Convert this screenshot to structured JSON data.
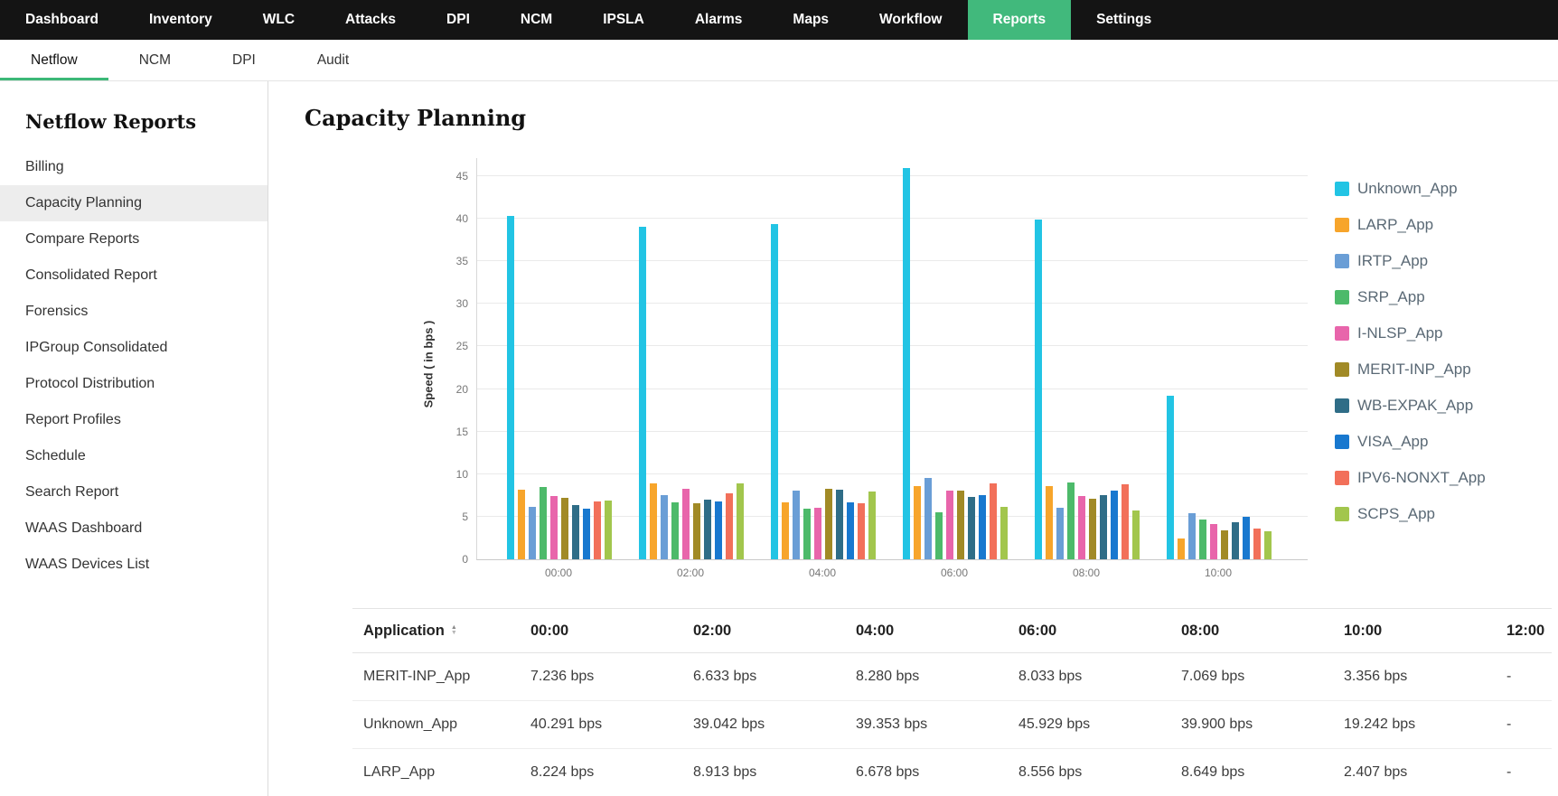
{
  "nav": {
    "items": [
      "Dashboard",
      "Inventory",
      "WLC",
      "Attacks",
      "DPI",
      "NCM",
      "IPSLA",
      "Alarms",
      "Maps",
      "Workflow",
      "Reports",
      "Settings"
    ],
    "active": "Reports",
    "active_color": "#41b97c"
  },
  "subnav": {
    "items": [
      "Netflow",
      "NCM",
      "DPI",
      "Audit"
    ],
    "active": "Netflow",
    "accent_color": "#3cb878"
  },
  "sidebar": {
    "title": "Netflow Reports",
    "items": [
      "Billing",
      "Capacity Planning",
      "Compare Reports",
      "Consolidated Report",
      "Forensics",
      "IPGroup Consolidated",
      "Protocol Distribution",
      "Report Profiles",
      "Schedule",
      "Search Report",
      "WAAS Dashboard",
      "WAAS Devices List"
    ],
    "active": "Capacity Planning"
  },
  "page": {
    "title": "Capacity Planning"
  },
  "chart_data": {
    "type": "bar",
    "title": "Capacity Planning",
    "xlabel": "",
    "ylabel": "Speed ( in bps )",
    "ylim": [
      0,
      45
    ],
    "yticks": [
      0,
      5,
      10,
      15,
      20,
      25,
      30,
      35,
      40,
      45
    ],
    "grid": true,
    "legend_position": "right",
    "categories": [
      "00:00",
      "02:00",
      "04:00",
      "06:00",
      "08:00",
      "10:00"
    ],
    "series": [
      {
        "name": "Unknown_App",
        "color": "#22c4e4",
        "values": [
          40.291,
          39.042,
          39.353,
          45.929,
          39.9,
          19.242
        ]
      },
      {
        "name": "LARP_App",
        "color": "#f7a52b",
        "values": [
          8.224,
          8.913,
          6.678,
          8.556,
          8.649,
          2.407
        ]
      },
      {
        "name": "IRTP_App",
        "color": "#6a9ed6",
        "values": [
          6.2,
          7.5,
          8.1,
          9.6,
          6.0,
          5.4
        ]
      },
      {
        "name": "SRP_App",
        "color": "#4dba6a",
        "values": [
          8.5,
          6.7,
          5.9,
          5.5,
          9.0,
          4.7
        ]
      },
      {
        "name": "I-NLSP_App",
        "color": "#e865ab",
        "values": [
          7.4,
          8.3,
          6.0,
          8.1,
          7.4,
          4.1
        ]
      },
      {
        "name": "MERIT-INP_App",
        "color": "#a18a26",
        "values": [
          7.236,
          6.633,
          8.28,
          8.033,
          7.069,
          3.356
        ]
      },
      {
        "name": "WB-EXPAK_App",
        "color": "#2f6d87",
        "values": [
          6.4,
          7.0,
          8.2,
          7.3,
          7.5,
          4.4
        ]
      },
      {
        "name": "VISA_App",
        "color": "#1878cf",
        "values": [
          5.9,
          6.8,
          6.7,
          7.5,
          8.1,
          5.0
        ]
      },
      {
        "name": "IPV6-NONXT_App",
        "color": "#f2705a",
        "values": [
          6.8,
          7.7,
          6.6,
          8.9,
          8.8,
          3.6
        ]
      },
      {
        "name": "SCPS_App",
        "color": "#a2c64d",
        "values": [
          6.9,
          8.9,
          8.0,
          6.2,
          5.7,
          3.3
        ]
      }
    ]
  },
  "table": {
    "columns": [
      "Application",
      "00:00",
      "02:00",
      "04:00",
      "06:00",
      "08:00",
      "10:00",
      "12:00"
    ],
    "rows": [
      {
        "application": "MERIT-INP_App",
        "values": [
          "7.236 bps",
          "6.633 bps",
          "8.280 bps",
          "8.033 bps",
          "7.069 bps",
          "3.356 bps",
          "-"
        ]
      },
      {
        "application": "Unknown_App",
        "values": [
          "40.291 bps",
          "39.042 bps",
          "39.353 bps",
          "45.929 bps",
          "39.900 bps",
          "19.242 bps",
          "-"
        ]
      },
      {
        "application": "LARP_App",
        "values": [
          "8.224 bps",
          "8.913 bps",
          "6.678 bps",
          "8.556 bps",
          "8.649 bps",
          "2.407 bps",
          "-"
        ]
      }
    ]
  }
}
